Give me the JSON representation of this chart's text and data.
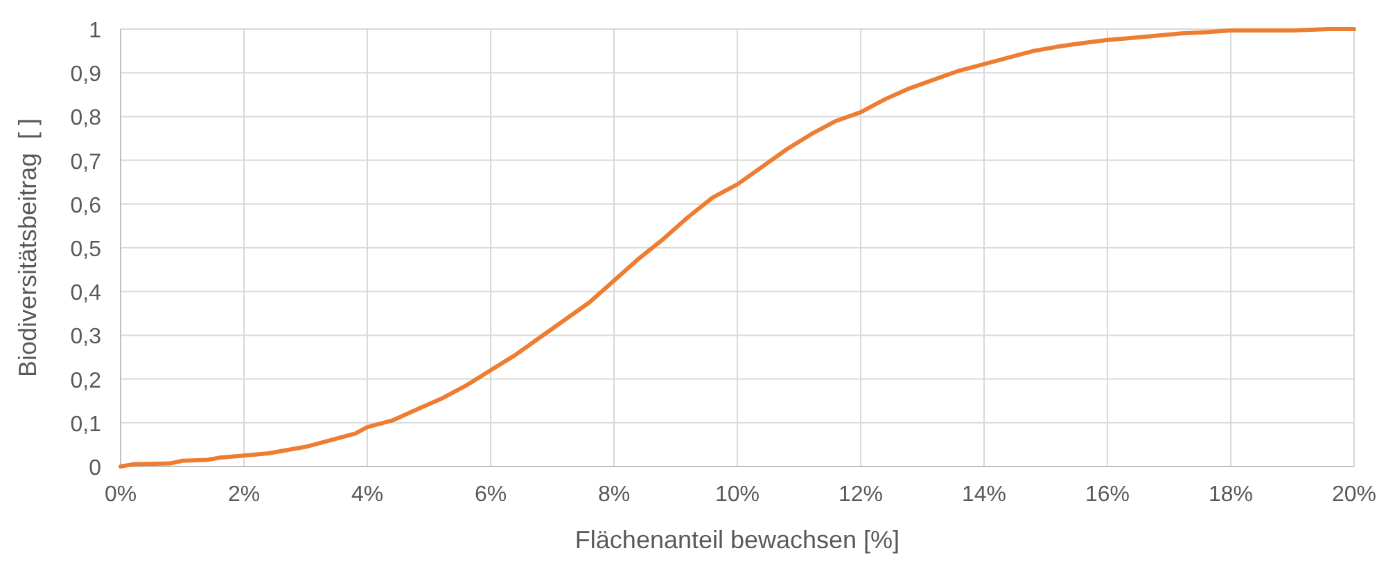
{
  "chart_data": {
    "type": "line",
    "xlabel": "Flächenanteil bewachsen [%]",
    "ylabel": "Biodiversitätsbeitrag  [ ]",
    "x": [
      0,
      0.2,
      0.8,
      1.0,
      1.4,
      1.6,
      2.0,
      2.4,
      3.0,
      3.4,
      3.8,
      4.0,
      4.4,
      4.8,
      5.2,
      5.6,
      6.0,
      6.4,
      6.8,
      7.2,
      7.6,
      8.0,
      8.4,
      8.8,
      9.2,
      9.6,
      10.0,
      10.4,
      10.8,
      11.2,
      11.6,
      12.0,
      12.4,
      12.8,
      13.2,
      13.6,
      14.0,
      14.4,
      14.8,
      15.2,
      15.6,
      16.0,
      16.4,
      16.8,
      17.2,
      17.6,
      18.0,
      19.0,
      19.6,
      20.0
    ],
    "series": [
      {
        "color": "#ed7d31",
        "values": [
          0,
          0.005,
          0.007,
          0.013,
          0.015,
          0.02,
          0.025,
          0.03,
          0.045,
          0.06,
          0.075,
          0.09,
          0.105,
          0.13,
          0.155,
          0.185,
          0.22,
          0.255,
          0.295,
          0.335,
          0.375,
          0.425,
          0.475,
          0.52,
          0.57,
          0.615,
          0.645,
          0.685,
          0.725,
          0.76,
          0.79,
          0.81,
          0.84,
          0.865,
          0.885,
          0.905,
          0.92,
          0.935,
          0.95,
          0.96,
          0.968,
          0.975,
          0.98,
          0.985,
          0.99,
          0.993,
          0.997,
          0.997,
          1,
          1
        ]
      }
    ],
    "xlim": [
      0,
      20
    ],
    "xticks": [
      {
        "value": 0,
        "label": "0%"
      },
      {
        "value": 2,
        "label": "2%"
      },
      {
        "value": 4,
        "label": "4%"
      },
      {
        "value": 6,
        "label": "6%"
      },
      {
        "value": 8,
        "label": "8%"
      },
      {
        "value": 10,
        "label": "10%"
      },
      {
        "value": 12,
        "label": "12%"
      },
      {
        "value": 14,
        "label": "14%"
      },
      {
        "value": 16,
        "label": "16%"
      },
      {
        "value": 18,
        "label": "18%"
      },
      {
        "value": 20,
        "label": "20%"
      }
    ],
    "ylim": [
      0,
      1
    ],
    "yticks": [
      {
        "value": 0,
        "label": "0"
      },
      {
        "value": 0.1,
        "label": "0,1"
      },
      {
        "value": 0.2,
        "label": "0,2"
      },
      {
        "value": 0.3,
        "label": "0,3"
      },
      {
        "value": 0.4,
        "label": "0,4"
      },
      {
        "value": 0.5,
        "label": "0,5"
      },
      {
        "value": 0.6,
        "label": "0,6"
      },
      {
        "value": 0.7,
        "label": "0,7"
      },
      {
        "value": 0.8,
        "label": "0,8"
      },
      {
        "value": 0.9,
        "label": "0,9"
      },
      {
        "value": 1,
        "label": "1"
      }
    ],
    "grid": true,
    "marker": "none",
    "line_style": "solid"
  }
}
